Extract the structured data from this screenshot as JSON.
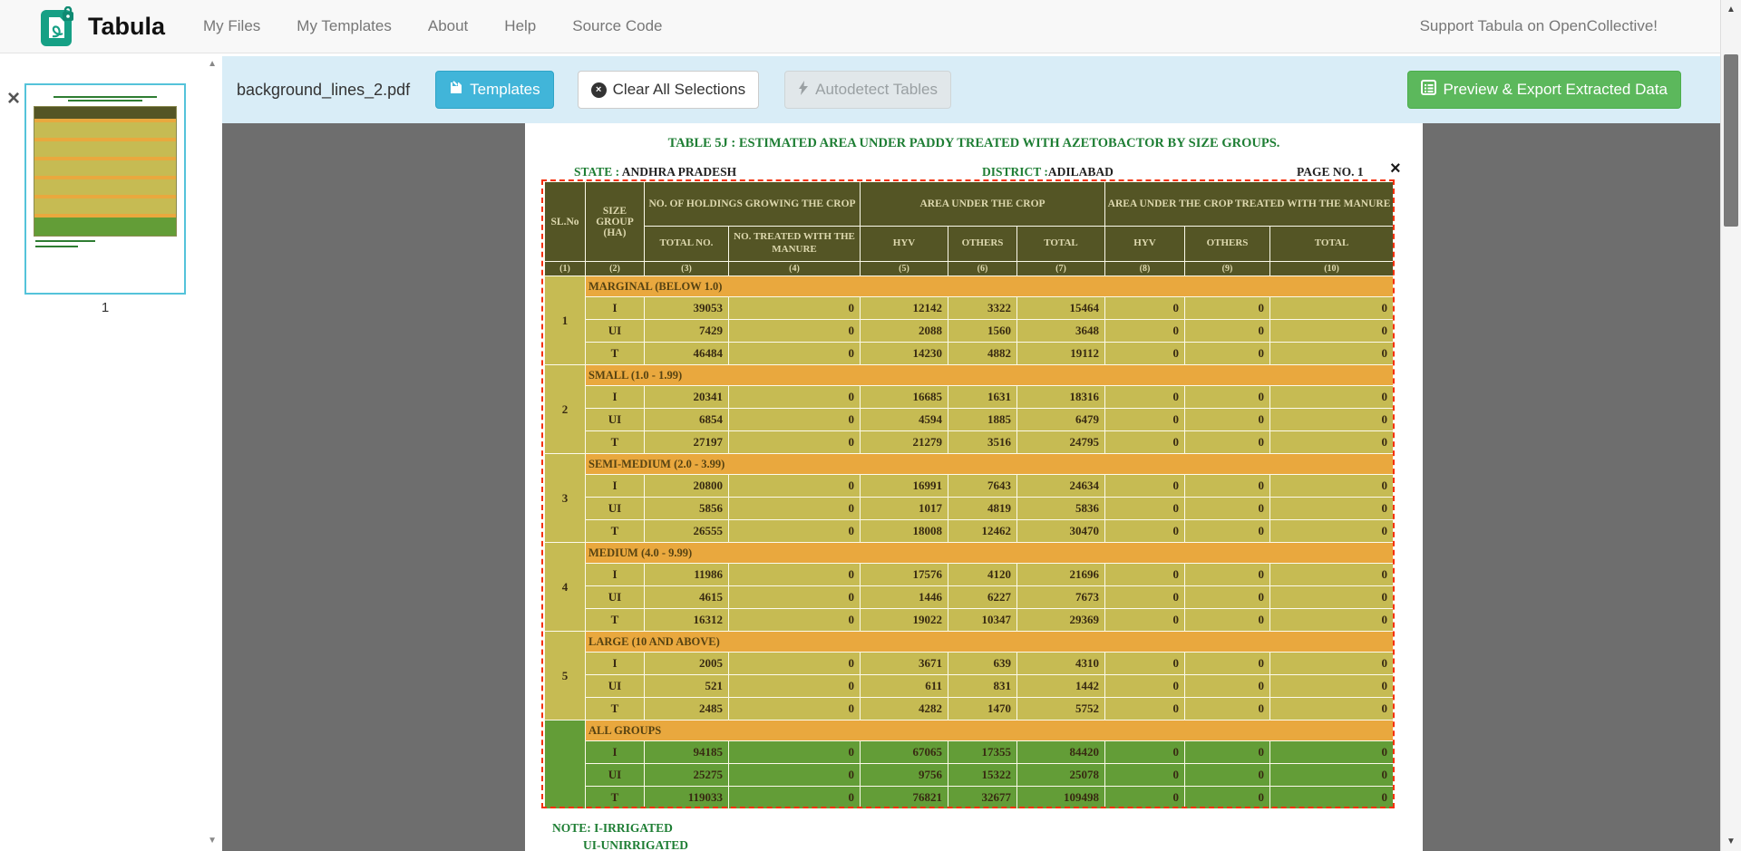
{
  "navbar": {
    "brand": "Tabula",
    "items": [
      "My Files",
      "My Templates",
      "About",
      "Help",
      "Source Code"
    ],
    "support_link": "Support Tabula on OpenCollective!"
  },
  "sidebar": {
    "page_number": "1"
  },
  "toolbar": {
    "filename": "background_lines_2.pdf",
    "templates_label": "Templates",
    "clear_label": "Clear All Selections",
    "autodetect_label": "Autodetect Tables",
    "export_label": "Preview & Export Extracted Data"
  },
  "glyphs": {
    "close": "×",
    "up": "▲",
    "down": "▼",
    "remove": "×"
  },
  "colors": {
    "toolbar_bg": "#d9edf7",
    "templates_blue": "#41b5d9",
    "export_green": "#5cb85c",
    "selection_red": "#f5300c",
    "table_header_olive": "#545525",
    "row_yellow": "#c6bb53",
    "section_orange": "#e9a83e",
    "row_green": "#639d37",
    "doc_green": "#1e7e34"
  },
  "document": {
    "title": "TABLE 5J : ESTIMATED AREA UNDER PADDY  TREATED WITH AZETOBACTOR BY SIZE GROUPS.",
    "state_label": "STATE :",
    "state_value": "ANDHRA PRADESH",
    "district_label": "DISTRICT :",
    "district_value": "ADILABAD",
    "page_label": "PAGE NO. 1",
    "note_line1": "NOTE: I-IRRIGATED",
    "note_line2": "UI-UNIRRIGATED"
  },
  "table": {
    "header": {
      "sl": "SL.No",
      "size_group": "SIZE GROUP (HA)",
      "holdings": "NO. OF HOLDINGS GROWING THE CROP",
      "area": "AREA UNDER THE CROP",
      "treated": "AREA UNDER THE CROP TREATED WITH THE MANURE",
      "total_no": "TOTAL NO.",
      "treated_no": "NO. TREATED WITH THE MANURE",
      "hyv": "HYV",
      "others": "OTHERS",
      "total": "TOTAL"
    },
    "col_numbers": [
      "(1)",
      "(2)",
      "(3)",
      "(4)",
      "(5)",
      "(6)",
      "(7)",
      "(8)",
      "(9)",
      "(10)"
    ],
    "groups": [
      {
        "sl": "1",
        "label": "MARGINAL (BELOW 1.0)",
        "green": false,
        "rows": [
          [
            "I",
            "39053",
            "0",
            "12142",
            "3322",
            "15464",
            "0",
            "0",
            "0"
          ],
          [
            "UI",
            "7429",
            "0",
            "2088",
            "1560",
            "3648",
            "0",
            "0",
            "0"
          ],
          [
            "T",
            "46484",
            "0",
            "14230",
            "4882",
            "19112",
            "0",
            "0",
            "0"
          ]
        ]
      },
      {
        "sl": "2",
        "label": "SMALL (1.0 - 1.99)",
        "green": false,
        "rows": [
          [
            "I",
            "20341",
            "0",
            "16685",
            "1631",
            "18316",
            "0",
            "0",
            "0"
          ],
          [
            "UI",
            "6854",
            "0",
            "4594",
            "1885",
            "6479",
            "0",
            "0",
            "0"
          ],
          [
            "T",
            "27197",
            "0",
            "21279",
            "3516",
            "24795",
            "0",
            "0",
            "0"
          ]
        ]
      },
      {
        "sl": "3",
        "label": "SEMI-MEDIUM (2.0 - 3.99)",
        "green": false,
        "rows": [
          [
            "I",
            "20800",
            "0",
            "16991",
            "7643",
            "24634",
            "0",
            "0",
            "0"
          ],
          [
            "UI",
            "5856",
            "0",
            "1017",
            "4819",
            "5836",
            "0",
            "0",
            "0"
          ],
          [
            "T",
            "26555",
            "0",
            "18008",
            "12462",
            "30470",
            "0",
            "0",
            "0"
          ]
        ]
      },
      {
        "sl": "4",
        "label": "MEDIUM (4.0 - 9.99)",
        "green": false,
        "rows": [
          [
            "I",
            "11986",
            "0",
            "17576",
            "4120",
            "21696",
            "0",
            "0",
            "0"
          ],
          [
            "UI",
            "4615",
            "0",
            "1446",
            "6227",
            "7673",
            "0",
            "0",
            "0"
          ],
          [
            "T",
            "16312",
            "0",
            "19022",
            "10347",
            "29369",
            "0",
            "0",
            "0"
          ]
        ]
      },
      {
        "sl": "5",
        "label": "LARGE (10 AND ABOVE)",
        "green": false,
        "rows": [
          [
            "I",
            "2005",
            "0",
            "3671",
            "639",
            "4310",
            "0",
            "0",
            "0"
          ],
          [
            "UI",
            "521",
            "0",
            "611",
            "831",
            "1442",
            "0",
            "0",
            "0"
          ],
          [
            "T",
            "2485",
            "0",
            "4282",
            "1470",
            "5752",
            "0",
            "0",
            "0"
          ]
        ]
      },
      {
        "sl": "",
        "label": "ALL GROUPS",
        "green": true,
        "rows": [
          [
            "I",
            "94185",
            "0",
            "67065",
            "17355",
            "84420",
            "0",
            "0",
            "0"
          ],
          [
            "UI",
            "25275",
            "0",
            "9756",
            "15322",
            "25078",
            "0",
            "0",
            "0"
          ],
          [
            "T",
            "119033",
            "0",
            "76821",
            "32677",
            "109498",
            "0",
            "0",
            "0"
          ]
        ]
      }
    ]
  }
}
